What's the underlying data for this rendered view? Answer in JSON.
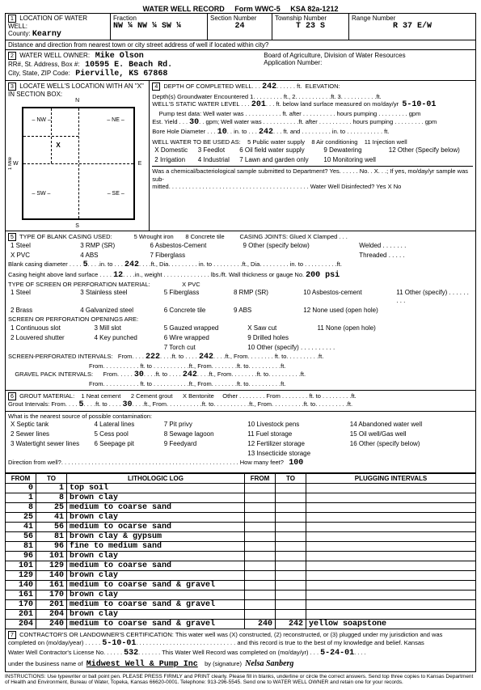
{
  "header": {
    "title": "WATER WELL RECORD",
    "form": "Form WWC-5",
    "ksa": "KSA 82a-1212"
  },
  "loc": {
    "label": "LOCATION OF WATER WELL:",
    "countyLabel": "County:",
    "county": "Kearny",
    "fractionLabel": "Fraction",
    "fractions": "NW ¼   NW   ¼   SW   ¼",
    "sectionLabel": "Section Number",
    "section": "24",
    "townshipLabel": "Township Number",
    "township": "T  23    S",
    "rangeLabel": "Range Number",
    "range": "R  37    E/W",
    "distance": "Distance and direction from nearest town or city street address of well if located within city?"
  },
  "owner": {
    "title": "WATER WELL OWNER:",
    "name": "Mike Olson",
    "addrLabel": "RR#, St. Address, Box #:",
    "addr": "10595 E. Beach Rd.",
    "cityLabel": "City, State, ZIP Code:",
    "city": "Pierville, KS  67868",
    "board": "Board of Agriculture, Division of Water Resources",
    "appnum": "Application Number:"
  },
  "sec3": "LOCATE WELL'S LOCATION WITH AN \"X\" IN SECTION BOX:",
  "diagram": {
    "n": "N",
    "s": "S",
    "e": "E",
    "w": "W",
    "nw": "NW",
    "ne": "NE",
    "sw": "SW",
    "se": "SE",
    "mile": "1 Mile"
  },
  "depth": {
    "title": "DEPTH OF COMPLETED WELL",
    "value": "242",
    "ft": "ft.",
    "elev": "ELEVATION:",
    "l1": "Depth(s) Groundwater Encountered  1. . . . . . . . . ft., 2. . . . . . . . . . .ft. 3. . . . . . . . . . .ft.",
    "l2a": "WELL'S STATIC WATER LEVEL",
    "l2v": "201",
    "l2b": "ft. below land surface measured on mo/day/yr",
    "l2d": "5-10-01",
    "l3": "Pump test data:  Well water was . . . . . . . . . . . ft. after . . . . . . . . . . hours pumping . . . . . . . . . gpm",
    "l4a": "Est. Yield",
    "l4v": "30",
    "l4b": "gpm;  Well water was . . . . . . . . . . .ft. after . . . . . . . . . . hours pumping . . . . . . . . . gpm",
    "l5a": "Bore Hole Diameter",
    "l5v1": "10",
    "l5b": "in. to",
    "l5v2": "242",
    "l5c": "ft. and . . . . . . . . . in. to . . . . . . . . . . . ft.",
    "use": "WELL WATER TO BE USED AS:",
    "uses": [
      [
        "X Domestic",
        "3 Feedlot",
        "6 Oil field water supply",
        "9 Dewatering",
        "12 Other (Specify below)"
      ],
      [
        "2 Irrigation",
        "4 Industrial",
        "7 Lawn and garden only",
        "10 Monitoring well",
        ""
      ]
    ],
    "usesTop": [
      "5 Public water supply",
      "8 Air conditioning",
      "11 Injection well"
    ],
    "chem": "Was a chemical/bacteriological sample submitted to Department?  Yes. . . . . . No. . X. . .;  If yes, mo/day/yr sample was sub-",
    "chem2": "mitted. . . . . . . . . . . . . . . . . . . . . . . . . . . . . . . . . . . . . . . . . . Water Well Disinfected?  Yes   X       No"
  },
  "casing": {
    "title": "TYPE OF BLANK CASING USED:",
    "c1": "1 Steel",
    "c3": "3 RMP (SR)",
    "c5": "5 Wrought iron",
    "c8": "8 Concrete tile",
    "joints": "CASING JOINTS: Glued  X    Clamped . . .",
    "c2": "X PVC",
    "c4": "4 ABS",
    "c6": "6 Asbestos-Cement",
    "c9": "9 Other (specify below)",
    "welded": "Welded . . . . . . .",
    "c7": "7 Fiberglass",
    "thread": "Threaded . . . . .",
    "bcd": "Blank casing diameter",
    "bcd1": "5",
    "bcd2": "242",
    "chgt": "Casing height above land surface",
    "chgt1": "12",
    "psi": "200 psi",
    "perfmat": "TYPE OF SCREEN OR PERFORATION MATERIAL:",
    "pvc": "X PVC",
    "p1": "1 Steel",
    "p3": "3 Stainless steel",
    "p5": "5 Fiberglass",
    "p8": "8 RMP (SR)",
    "p10": "10 Asbestos-cement",
    "p11": "11 Other (specify) . . . . . . . . .",
    "p2": "2 Brass",
    "p4": "4 Galvanized steel",
    "p6": "6 Concrete tile",
    "p9": "9 ABS",
    "p12": "12 None used (open hole)",
    "openings": "SCREEN OR PERFORATION OPENINGS ARE:",
    "o1": "1 Continuous slot",
    "o3": "3 Mill slot",
    "o5": "5 Gauzed wrapped",
    "o8": "X Saw cut",
    "o11": "11 None (open hole)",
    "o2": "2 Louvered shutter",
    "o4": "4 Key punched",
    "o6": "6 Wire wrapped",
    "o9": "9 Drilled holes",
    "o7": "7 Torch cut",
    "o10": "10 Other (specify) . . . . . . . . . .",
    "spi": "SCREEN-PERFORATED INTERVALS:",
    "spf": "222",
    "spt": "242",
    "gpi": "GRAVEL PACK INTERVALS:",
    "gpf": "30",
    "gpt": "242"
  },
  "grout": {
    "title": "GROUT MATERIAL:",
    "g1": "1 Neat cement",
    "g2": "2 Cement grout",
    "g3": "X Bentonite",
    "g4": "Other . . . . . . . . From . . . . . . . . ft. to . . . . . . . . .ft.",
    "gi": "Grout Intervals:  From",
    "gif": "5",
    "git": "30",
    "contam": "What is the nearest source of possible contamination:",
    "c": [
      [
        "X Septic tank",
        "4 Lateral lines",
        "7 Pit privy",
        "10 Livestock pens",
        "14 Abandoned water well"
      ],
      [
        "2 Sewer lines",
        "5 Cess pool",
        "8 Sewage lagoon",
        "11 Fuel storage",
        "15 Oil well/Gas well"
      ],
      [
        "3 Watertight sewer lines",
        "6 Seepage pit",
        "9 Feedyard",
        "12 Fertilizer storage",
        "16 Other (specify below)"
      ],
      [
        "",
        "",
        "",
        "13 Insecticide storage",
        ""
      ]
    ],
    "dir": "Direction from well?",
    "howmany": "How many feet?",
    "hmv": "100"
  },
  "log": {
    "h": [
      "FROM",
      "TO",
      "LITHOLOGIC LOG",
      "FROM",
      "TO",
      "PLUGGING INTERVALS"
    ],
    "rows": [
      [
        "0",
        "1",
        "top soil",
        "",
        "",
        ""
      ],
      [
        "1",
        "8",
        "brown clay",
        "",
        "",
        ""
      ],
      [
        "8",
        "25",
        "medium to coarse sand",
        "",
        "",
        ""
      ],
      [
        "25",
        "41",
        "brown clay",
        "",
        "",
        ""
      ],
      [
        "41",
        "56",
        "medium to ocarse sand",
        "",
        "",
        ""
      ],
      [
        "56",
        "81",
        "brown clay & gypsum",
        "",
        "",
        ""
      ],
      [
        "81",
        "96",
        "fine to medium sand",
        "",
        "",
        ""
      ],
      [
        "96",
        "101",
        "brown clay",
        "",
        "",
        ""
      ],
      [
        "101",
        "129",
        "medium to coarse sand",
        "",
        "",
        ""
      ],
      [
        "129",
        "140",
        "brown clay",
        "",
        "",
        ""
      ],
      [
        "140",
        "161",
        "medium to coarse sand & gravel",
        "",
        "",
        ""
      ],
      [
        "161",
        "170",
        "brown clay",
        "",
        "",
        ""
      ],
      [
        "170",
        "201",
        "medium to coarse sand & gravel",
        "",
        "",
        ""
      ],
      [
        "201",
        "204",
        "brown clay",
        "",
        "",
        ""
      ],
      [
        "204",
        "240",
        "medium to coarse sand & gravel",
        "240",
        "242",
        "yellow soapstone"
      ]
    ]
  },
  "cert": {
    "title": "CONTRACTOR'S OR LANDOWNER'S CERTIFICATION: This water well was (X) constructed, (2) reconstructed, or (3) plugged under my jurisdiction and was",
    "l2a": "completed on (mo/day/year)",
    "d1": "5-10-01",
    "l2b": "and this record is true to the best of my knowledge and belief. Kansas",
    "l3a": "Water Well Contractor's License No.",
    "lic": "532",
    "l3b": "This Water Well Record was completed on (mo/day/yr)",
    "d2": "5-24-01",
    "l4a": "under the business name of",
    "biz": "Midwest Well & Pump Inc",
    "l4b": "by (signature)",
    "sig": "Nelsa Sanberg"
  },
  "instr": "INSTRUCTIONS: Use typewriter or ball point pen. PLEASE PRESS FIRMLY and PRINT clearly. Please fill in blanks, underline or circle the correct answers. Send top three copies to Kansas Department of Health and Environment, Bureau of Water, Topeka, Kansas 66620-0001. Telephone: 913-296-5545. Send one to WATER WELL OWNER and retain one for your records."
}
